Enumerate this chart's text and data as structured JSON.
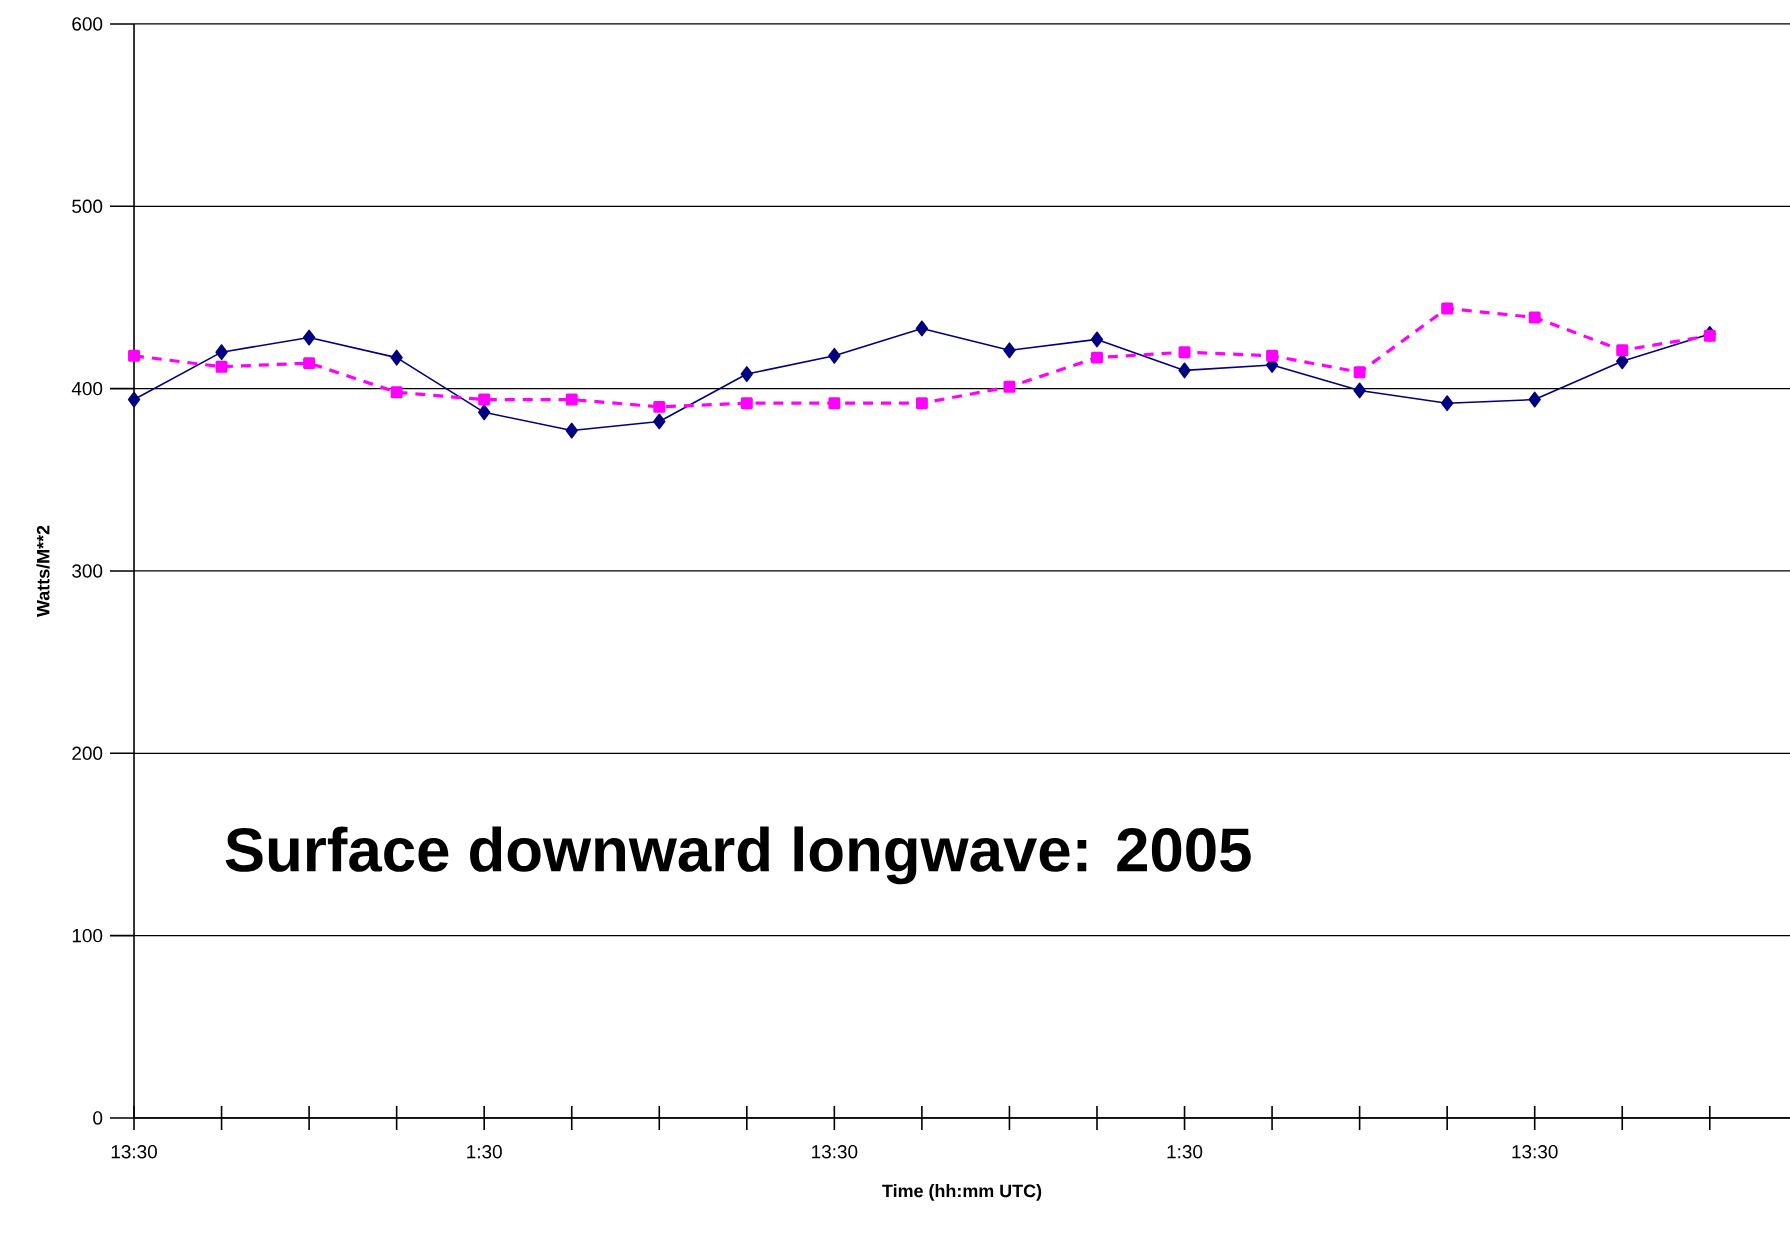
{
  "chart_data": {
    "type": "line",
    "annotations": [
      "Surface downward longwave: 2005"
    ],
    "xlabel": "Time (hh:mm UTC)",
    "ylabel": "Watts/M**2",
    "x": [
      "2005-01-01T13:30",
      "2005-01-01T16:30",
      "2005-01-01T19:30",
      "2005-01-01T22:30",
      "2005-01-02T01:30",
      "2005-01-02T04:30",
      "2005-01-02T07:30",
      "2005-01-02T10:30",
      "2005-01-02T13:30",
      "2005-01-02T16:30",
      "2005-01-02T19:30",
      "2005-01-02T22:30",
      "2005-01-03T01:30",
      "2005-01-03T04:30",
      "2005-01-03T07:30",
      "2005-01-03T10:30",
      "2005-01-03T13:30",
      "2005-01-03T16:30",
      "2005-01-03T19:30"
    ],
    "series": [
      {
        "color": "#000080",
        "marker": "diamond",
        "line_style": "solid",
        "values": [
          394,
          420,
          428,
          417,
          387,
          377,
          382,
          408,
          418,
          433,
          421,
          427,
          410,
          413,
          399,
          392,
          394,
          415,
          430
        ]
      },
      {
        "color": "#ff00ff",
        "marker": "square",
        "line_style": "dashed",
        "values": [
          418,
          412,
          414,
          398,
          394,
          394,
          390,
          392,
          392,
          392,
          401,
          417,
          420,
          418,
          409,
          444,
          439,
          421,
          429
        ]
      }
    ],
    "xlim": [
      "2005-01-01T13:30",
      "2005-01-03T22:15"
    ],
    "xticks": [
      {
        "value": "2005-01-01T13:30",
        "label": "13:30"
      },
      {
        "value": "2005-01-01T16:30",
        "label": null
      },
      {
        "value": "2005-01-01T19:30",
        "label": null
      },
      {
        "value": "2005-01-01T22:30",
        "label": null
      },
      {
        "value": "2005-01-02T01:30",
        "label": "1:30"
      },
      {
        "value": "2005-01-02T04:30",
        "label": null
      },
      {
        "value": "2005-01-02T07:30",
        "label": null
      },
      {
        "value": "2005-01-02T10:30",
        "label": null
      },
      {
        "value": "2005-01-02T13:30",
        "label": "13:30"
      },
      {
        "value": "2005-01-02T16:30",
        "label": null
      },
      {
        "value": "2005-01-02T19:30",
        "label": null
      },
      {
        "value": "2005-01-02T22:30",
        "label": null
      },
      {
        "value": "2005-01-03T01:30",
        "label": "1:30"
      },
      {
        "value": "2005-01-03T04:30",
        "label": null
      },
      {
        "value": "2005-01-03T07:30",
        "label": null
      },
      {
        "value": "2005-01-03T10:30",
        "label": null
      },
      {
        "value": "2005-01-03T13:30",
        "label": "13:30"
      },
      {
        "value": "2005-01-03T16:30",
        "label": null
      },
      {
        "value": "2005-01-03T19:30",
        "label": null
      }
    ],
    "ylim": [
      0,
      600
    ],
    "yticks": [
      0,
      100,
      200,
      300,
      400,
      500,
      600
    ],
    "grid": "y"
  }
}
